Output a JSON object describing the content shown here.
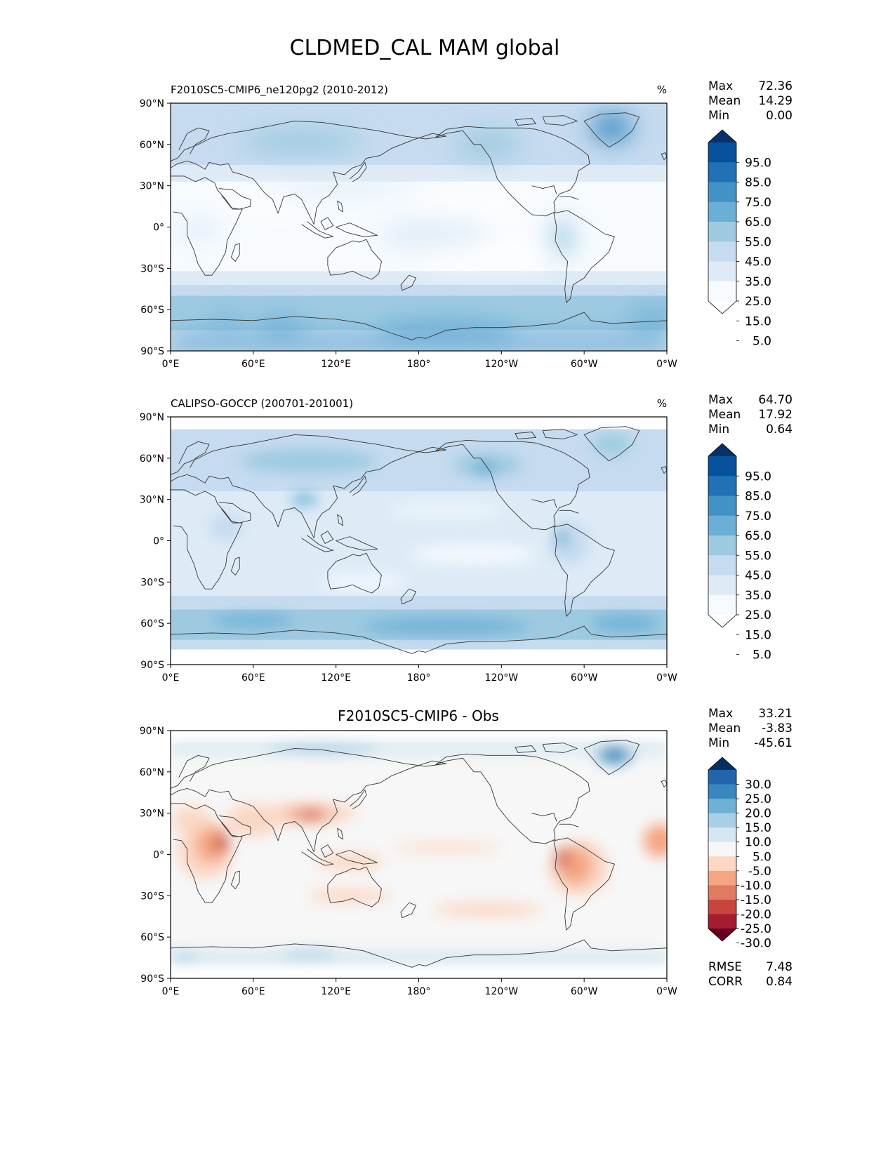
{
  "title": "CLDMED_CAL MAM global",
  "lat_ticks": [
    "90°N",
    "60°N",
    "30°N",
    "0°",
    "30°S",
    "60°S",
    "90°S"
  ],
  "lon_ticks": [
    "0°E",
    "60°E",
    "120°E",
    "180°",
    "120°W",
    "60°W",
    "0°W"
  ],
  "panels": [
    {
      "id": "model",
      "left_title": "F2010SC5-CMIP6_ne120pg2 (2010-2012)",
      "center_title": "",
      "units": "%",
      "stats": [
        {
          "label": "Max",
          "value": "72.36"
        },
        {
          "label": "Mean",
          "value": "14.29"
        },
        {
          "label": "Min",
          "value": "0.00"
        }
      ],
      "colorbar": {
        "labels": [
          "95.0",
          "85.0",
          "75.0",
          "65.0",
          "55.0",
          "45.0",
          "35.0",
          "25.0",
          "15.0",
          "5.0"
        ],
        "colors": [
          "#08306b",
          "#08519c",
          "#2171b5",
          "#4292c6",
          "#6baed6",
          "#9ecae1",
          "#c6dbef",
          "#deebf7",
          "#f7fbff",
          "#ffffff"
        ]
      },
      "extra_stats": []
    },
    {
      "id": "obs",
      "left_title": "CALIPSO-GOCCP (200701-201001)",
      "center_title": "",
      "units": "%",
      "stats": [
        {
          "label": "Max",
          "value": "64.70"
        },
        {
          "label": "Mean",
          "value": "17.92"
        },
        {
          "label": "Min",
          "value": "0.64"
        }
      ],
      "colorbar": {
        "labels": [
          "95.0",
          "85.0",
          "75.0",
          "65.0",
          "55.0",
          "45.0",
          "35.0",
          "25.0",
          "15.0",
          "5.0"
        ],
        "colors": [
          "#08306b",
          "#08519c",
          "#2171b5",
          "#4292c6",
          "#6baed6",
          "#9ecae1",
          "#c6dbef",
          "#deebf7",
          "#f7fbff",
          "#ffffff"
        ]
      },
      "extra_stats": []
    },
    {
      "id": "diff",
      "left_title": "",
      "center_title": "F2010SC5-CMIP6 - Obs",
      "units": "",
      "stats": [
        {
          "label": "Max",
          "value": "33.21"
        },
        {
          "label": "Mean",
          "value": "-3.83"
        },
        {
          "label": "Min",
          "value": "-45.61"
        }
      ],
      "colorbar": {
        "labels": [
          "30.0",
          "25.0",
          "20.0",
          "15.0",
          "10.0",
          "5.0",
          "-5.0",
          "-10.0",
          "-15.0",
          "-20.0",
          "-25.0",
          "-30.0"
        ],
        "colors": [
          "#053061",
          "#2166ac",
          "#3a87c0",
          "#6fb0d4",
          "#a8cfe5",
          "#d6e7f1",
          "#f7f7f7",
          "#fbd7c4",
          "#f4a582",
          "#e07b62",
          "#c8453d",
          "#a51c2e",
          "#67001f"
        ]
      },
      "extra_stats": [
        {
          "label": "RMSE",
          "value": "7.48"
        },
        {
          "label": "CORR",
          "value": "0.84"
        }
      ]
    }
  ]
}
